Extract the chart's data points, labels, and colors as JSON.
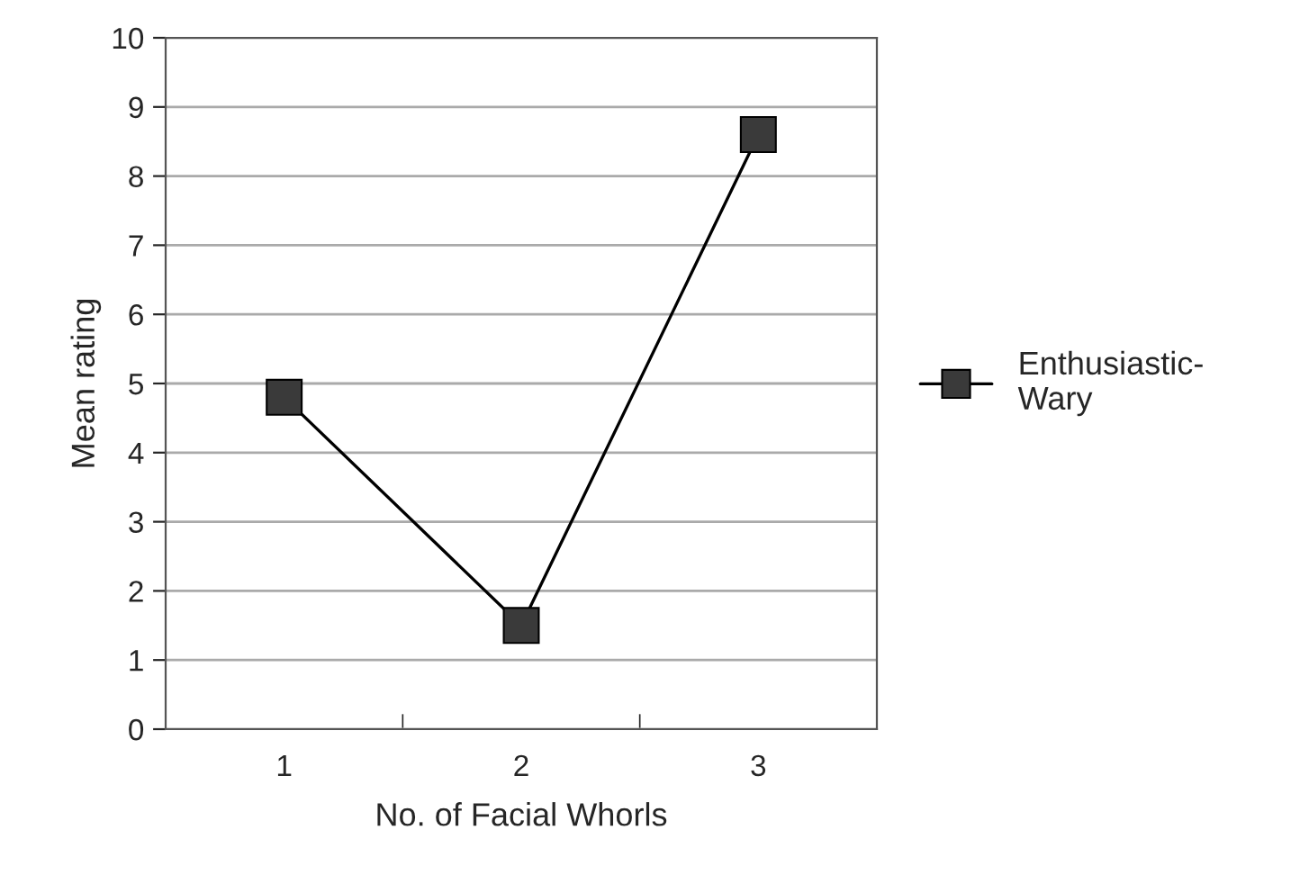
{
  "chart_data": {
    "type": "line",
    "xlabel": "No. of Facial Whorls",
    "ylabel": "Mean rating",
    "categories": [
      "1",
      "2",
      "3"
    ],
    "series": [
      {
        "name": "Enthusiastic-Wary",
        "color": "#3a3a3a",
        "values": [
          4.8,
          1.5,
          8.6
        ]
      }
    ],
    "ylim": [
      0,
      10
    ],
    "yticks": [
      0,
      1,
      2,
      3,
      4,
      5,
      6,
      7,
      8,
      9,
      10
    ],
    "grid": "y",
    "legend": "right",
    "marker": "square",
    "line_style": "solid"
  }
}
